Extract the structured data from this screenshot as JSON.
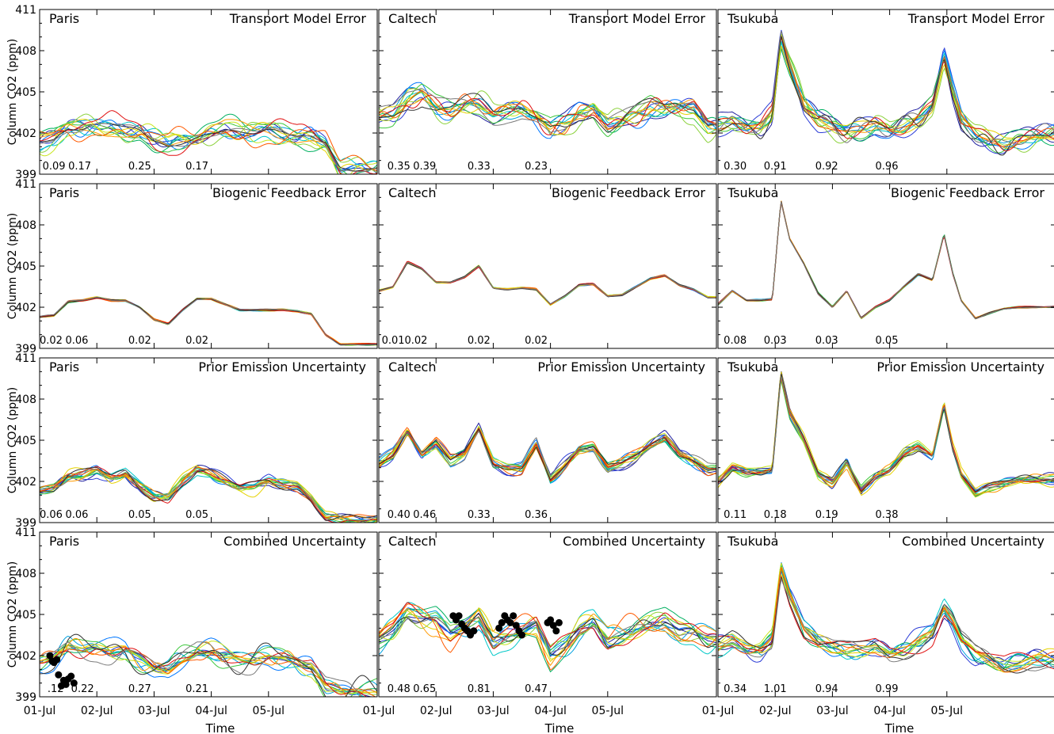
{
  "figure": {
    "ylabel": "Column CO2 (ppm)",
    "xlabel": "Time",
    "yticks": [
      399,
      402,
      405,
      408,
      411
    ],
    "xticks": [
      "01-Jul",
      "02-Jul",
      "03-Jul",
      "04-Jul",
      "05-Jul"
    ],
    "ylim": [
      399,
      411
    ],
    "xlim": [
      0,
      5.9
    ],
    "sites": [
      "Paris",
      "Caltech",
      "Tsukuba"
    ],
    "rows": [
      {
        "title": "Transport Model Error",
        "spread": "large"
      },
      {
        "title": "Biogenic Feedback Error",
        "spread": "tiny"
      },
      {
        "title": "Prior Emission Uncertainty",
        "spread": "medium"
      },
      {
        "title": "Combined Uncertainty",
        "spread": "large"
      }
    ],
    "ensemble_colors": [
      "#1f1fa0",
      "#2a3bd6",
      "#0077ff",
      "#00a0e0",
      "#00c8c8",
      "#00b060",
      "#3cc83c",
      "#8cd23c",
      "#c8e61e",
      "#e6d200",
      "#ff9900",
      "#ff5a00",
      "#e01010",
      "#303030",
      "#7a7a7a"
    ]
  },
  "chart_data": [
    {
      "type": "line",
      "panel": "Paris",
      "title": "Transport Model Error",
      "x": [
        0,
        0.25,
        0.5,
        0.75,
        1.0,
        1.25,
        1.5,
        1.75,
        2.0,
        2.25,
        2.5,
        2.75,
        3.0,
        3.25,
        3.5,
        3.75,
        4.0,
        4.25,
        4.5,
        4.75,
        5.0,
        5.25,
        5.5,
        5.75,
        5.9
      ],
      "mean": [
        401.4,
        401.6,
        402.4,
        402.4,
        402.6,
        402.6,
        402.3,
        402.2,
        401.5,
        401.0,
        401.3,
        401.6,
        402.0,
        402.3,
        402.1,
        402.0,
        402.1,
        402.0,
        401.7,
        401.8,
        401.5,
        399.5,
        399.3,
        399.3,
        399.3
      ],
      "numbers": [
        {
          "x": 0.25,
          "text": "0.09"
        },
        {
          "x": 0.7,
          "text": "0.17"
        },
        {
          "x": 1.75,
          "text": "0.25"
        },
        {
          "x": 2.75,
          "text": "0.17"
        }
      ],
      "observations": []
    },
    {
      "type": "line",
      "panel": "Caltech",
      "title": "Transport Model Error",
      "x": [
        0,
        0.25,
        0.5,
        0.75,
        1.0,
        1.25,
        1.5,
        1.75,
        2.0,
        2.25,
        2.5,
        2.75,
        3.0,
        3.25,
        3.5,
        3.75,
        4.0,
        4.25,
        4.5,
        4.75,
        5.0,
        5.25,
        5.5,
        5.75,
        5.9
      ],
      "mean": [
        403.2,
        403.5,
        404.6,
        404.9,
        404.0,
        403.8,
        404.0,
        403.9,
        403.2,
        403.5,
        403.6,
        403.2,
        402.4,
        402.8,
        403.8,
        403.9,
        402.6,
        402.8,
        403.2,
        403.8,
        403.5,
        403.8,
        403.8,
        402.5,
        402.5
      ],
      "numbers": [
        {
          "x": 0.35,
          "text": "0.35"
        },
        {
          "x": 0.8,
          "text": "0.39"
        },
        {
          "x": 1.75,
          "text": "0.33"
        },
        {
          "x": 2.75,
          "text": "0.23"
        }
      ],
      "observations": []
    },
    {
      "type": "line",
      "panel": "Tsukuba",
      "title": "Transport Model Error",
      "x": [
        0,
        0.25,
        0.5,
        0.75,
        0.95,
        1.1,
        1.25,
        1.5,
        1.75,
        2.0,
        2.25,
        2.5,
        2.75,
        3.0,
        3.25,
        3.5,
        3.75,
        3.95,
        4.1,
        4.25,
        4.5,
        4.75,
        5.0,
        5.25,
        5.5,
        5.75,
        5.9
      ],
      "mean": [
        402.5,
        403.0,
        402.5,
        402.6,
        403.5,
        409.0,
        407.0,
        404.0,
        402.8,
        402.5,
        402.0,
        402.3,
        402.6,
        402.3,
        402.5,
        403.0,
        404.0,
        407.5,
        405.0,
        403.0,
        402.0,
        401.5,
        401.2,
        401.5,
        401.7,
        402.0,
        402.0
      ],
      "numbers": [
        {
          "x": 0.3,
          "text": "0.30"
        },
        {
          "x": 1.0,
          "text": "0.91"
        },
        {
          "x": 1.9,
          "text": "0.92"
        },
        {
          "x": 2.95,
          "text": "0.96"
        }
      ],
      "observations": []
    },
    {
      "type": "line",
      "panel": "Paris",
      "title": "Biogenic Feedback Error",
      "x": [
        0,
        0.25,
        0.5,
        0.75,
        1.0,
        1.25,
        1.5,
        1.75,
        2.0,
        2.25,
        2.5,
        2.75,
        3.0,
        3.25,
        3.5,
        3.75,
        4.0,
        4.25,
        4.5,
        4.75,
        5.0,
        5.25,
        5.5,
        5.75,
        5.9
      ],
      "mean": [
        401.3,
        401.4,
        402.4,
        402.5,
        402.7,
        402.5,
        402.5,
        402.0,
        401.1,
        400.8,
        401.8,
        402.6,
        402.6,
        402.2,
        401.8,
        401.8,
        401.8,
        401.8,
        401.7,
        401.5,
        400.0,
        399.3,
        399.3,
        399.3,
        399.3
      ],
      "numbers": [
        {
          "x": 0.2,
          "text": "0.02"
        },
        {
          "x": 0.65,
          "text": "0.06"
        },
        {
          "x": 1.75,
          "text": "0.02"
        },
        {
          "x": 2.75,
          "text": "0.02"
        }
      ],
      "observations": []
    },
    {
      "type": "line",
      "panel": "Caltech",
      "title": "Biogenic Feedback Error",
      "x": [
        0,
        0.25,
        0.5,
        0.75,
        1.0,
        1.25,
        1.5,
        1.75,
        2.0,
        2.25,
        2.5,
        2.75,
        3.0,
        3.25,
        3.5,
        3.75,
        4.0,
        4.25,
        4.5,
        4.75,
        5.0,
        5.25,
        5.5,
        5.75,
        5.9
      ],
      "mean": [
        403.2,
        403.5,
        405.3,
        404.8,
        403.8,
        403.8,
        404.2,
        405.0,
        403.4,
        403.3,
        403.4,
        403.3,
        402.2,
        402.8,
        403.6,
        403.7,
        402.8,
        402.9,
        403.5,
        404.1,
        404.3,
        403.6,
        403.3,
        402.7,
        402.7
      ],
      "numbers": [
        {
          "x": 0.25,
          "text": "0.01"
        },
        {
          "x": 0.65,
          "text": "0.02"
        },
        {
          "x": 1.75,
          "text": "0.02"
        },
        {
          "x": 2.75,
          "text": "0.02"
        }
      ],
      "observations": []
    },
    {
      "type": "line",
      "panel": "Tsukuba",
      "title": "Biogenic Feedback Error",
      "x": [
        0,
        0.25,
        0.5,
        0.75,
        0.95,
        1.1,
        1.25,
        1.5,
        1.75,
        2.0,
        2.25,
        2.5,
        2.75,
        3.0,
        3.25,
        3.5,
        3.75,
        3.95,
        4.1,
        4.25,
        4.5,
        4.75,
        5.0,
        5.25,
        5.5,
        5.75,
        5.9
      ],
      "mean": [
        402.2,
        403.2,
        402.5,
        402.5,
        402.6,
        409.8,
        407.0,
        405.2,
        403.0,
        402.0,
        403.2,
        401.2,
        402.0,
        402.5,
        403.5,
        404.4,
        404.0,
        407.3,
        404.5,
        402.5,
        401.2,
        401.6,
        401.9,
        402.0,
        402.0,
        402.0,
        402.0
      ],
      "numbers": [
        {
          "x": 0.3,
          "text": "0.08"
        },
        {
          "x": 1.0,
          "text": "0.03"
        },
        {
          "x": 1.9,
          "text": "0.03"
        },
        {
          "x": 2.95,
          "text": "0.05"
        }
      ],
      "observations": []
    },
    {
      "type": "line",
      "panel": "Paris",
      "title": "Prior Emission Uncertainty",
      "x": [
        0,
        0.25,
        0.5,
        0.75,
        1.0,
        1.25,
        1.5,
        1.75,
        2.0,
        2.25,
        2.5,
        2.75,
        3.0,
        3.25,
        3.5,
        3.75,
        4.0,
        4.25,
        4.5,
        4.75,
        5.0,
        5.25,
        5.5,
        5.75,
        5.9
      ],
      "mean": [
        401.3,
        401.5,
        402.3,
        402.4,
        402.8,
        402.3,
        402.6,
        401.7,
        401.0,
        400.8,
        402.0,
        402.8,
        402.5,
        402.0,
        401.5,
        401.6,
        402.1,
        401.8,
        401.6,
        400.8,
        399.5,
        399.3,
        399.2,
        399.2,
        399.2
      ],
      "numbers": [
        {
          "x": 0.2,
          "text": "0.06"
        },
        {
          "x": 0.65,
          "text": "0.06"
        },
        {
          "x": 1.75,
          "text": "0.05"
        },
        {
          "x": 2.75,
          "text": "0.05"
        }
      ],
      "observations": []
    },
    {
      "type": "line",
      "panel": "Caltech",
      "title": "Prior Emission Uncertainty",
      "x": [
        0,
        0.25,
        0.5,
        0.75,
        1.0,
        1.25,
        1.5,
        1.75,
        2.0,
        2.25,
        2.5,
        2.75,
        3.0,
        3.25,
        3.5,
        3.75,
        4.0,
        4.25,
        4.5,
        4.75,
        5.0,
        5.25,
        5.5,
        5.75,
        5.9
      ],
      "mean": [
        403.3,
        404.0,
        405.7,
        404.0,
        404.8,
        403.5,
        404.0,
        405.8,
        403.2,
        403.0,
        403.0,
        404.8,
        402.2,
        403.2,
        404.3,
        404.5,
        403.0,
        403.3,
        403.8,
        404.6,
        405.2,
        404.0,
        403.6,
        403.0,
        403.0
      ],
      "numbers": [
        {
          "x": 0.35,
          "text": "0.40"
        },
        {
          "x": 0.8,
          "text": "0.46"
        },
        {
          "x": 1.75,
          "text": "0.33"
        },
        {
          "x": 2.75,
          "text": "0.36"
        }
      ],
      "observations": []
    },
    {
      "type": "line",
      "panel": "Tsukuba",
      "title": "Prior Emission Uncertainty",
      "x": [
        0,
        0.25,
        0.5,
        0.75,
        0.95,
        1.1,
        1.25,
        1.5,
        1.75,
        2.0,
        2.25,
        2.5,
        2.75,
        3.0,
        3.25,
        3.5,
        3.75,
        3.95,
        4.1,
        4.25,
        4.5,
        4.75,
        5.0,
        5.25,
        5.5,
        5.75,
        5.9
      ],
      "mean": [
        402.0,
        403.0,
        402.6,
        402.6,
        402.8,
        409.8,
        407.0,
        405.0,
        402.6,
        402.0,
        403.5,
        401.3,
        402.3,
        402.8,
        404.0,
        404.5,
        403.8,
        407.6,
        404.5,
        402.5,
        401.2,
        401.7,
        402.0,
        402.1,
        402.1,
        402.1,
        402.1
      ],
      "numbers": [
        {
          "x": 0.3,
          "text": "0.11"
        },
        {
          "x": 1.0,
          "text": "0.18"
        },
        {
          "x": 1.9,
          "text": "0.19"
        },
        {
          "x": 2.95,
          "text": "0.38"
        }
      ],
      "observations": []
    },
    {
      "type": "line",
      "panel": "Paris",
      "title": "Combined Uncertainty",
      "x": [
        0,
        0.25,
        0.5,
        0.75,
        1.0,
        1.25,
        1.5,
        1.75,
        2.0,
        2.25,
        2.5,
        2.75,
        3.0,
        3.25,
        3.5,
        3.75,
        4.0,
        4.25,
        4.5,
        4.75,
        5.0,
        5.25,
        5.5,
        5.75,
        5.9
      ],
      "mean": [
        401.5,
        401.8,
        402.6,
        402.4,
        402.6,
        402.4,
        402.5,
        401.8,
        401.0,
        400.8,
        401.6,
        402.3,
        402.3,
        402.1,
        401.8,
        401.6,
        402.0,
        401.8,
        401.6,
        401.2,
        399.6,
        399.3,
        399.3,
        399.3,
        399.3
      ],
      "numbers": [
        {
          "x": 0.28,
          "text": ".12"
        },
        {
          "x": 0.75,
          "text": "0.22"
        },
        {
          "x": 1.75,
          "text": "0.27"
        },
        {
          "x": 2.75,
          "text": "0.21"
        }
      ],
      "observations": [
        {
          "x": 0.18,
          "y": 402.0
        },
        {
          "x": 0.22,
          "y": 401.6
        },
        {
          "x": 0.25,
          "y": 401.5
        },
        {
          "x": 0.3,
          "y": 401.7
        },
        {
          "x": 0.33,
          "y": 400.6
        },
        {
          "x": 0.38,
          "y": 399.8
        },
        {
          "x": 0.42,
          "y": 400.2
        },
        {
          "x": 0.46,
          "y": 399.9
        },
        {
          "x": 0.5,
          "y": 400.3
        },
        {
          "x": 0.55,
          "y": 400.5
        },
        {
          "x": 0.6,
          "y": 400.0
        }
      ]
    },
    {
      "type": "line",
      "panel": "Caltech",
      "title": "Combined Uncertainty",
      "x": [
        0,
        0.25,
        0.5,
        0.75,
        1.0,
        1.25,
        1.5,
        1.75,
        2.0,
        2.25,
        2.5,
        2.75,
        3.0,
        3.25,
        3.5,
        3.75,
        4.0,
        4.25,
        4.5,
        4.75,
        5.0,
        5.25,
        5.5,
        5.75,
        5.9
      ],
      "mean": [
        403.2,
        403.8,
        405.0,
        404.6,
        404.6,
        403.5,
        404.2,
        405.0,
        403.0,
        403.4,
        403.8,
        404.2,
        402.0,
        402.8,
        404.0,
        404.4,
        403.0,
        403.4,
        404.0,
        404.4,
        404.6,
        403.8,
        403.6,
        403.0,
        403.0
      ],
      "numbers": [
        {
          "x": 0.35,
          "text": "0.48"
        },
        {
          "x": 0.8,
          "text": "0.65"
        },
        {
          "x": 1.75,
          "text": "0.81"
        },
        {
          "x": 2.75,
          "text": "0.47"
        }
      ],
      "observations": [
        {
          "x": 1.3,
          "y": 404.9
        },
        {
          "x": 1.35,
          "y": 404.6
        },
        {
          "x": 1.4,
          "y": 404.9
        },
        {
          "x": 1.45,
          "y": 404.3
        },
        {
          "x": 1.5,
          "y": 404.0
        },
        {
          "x": 1.55,
          "y": 403.8
        },
        {
          "x": 1.6,
          "y": 403.5
        },
        {
          "x": 1.66,
          "y": 403.8
        },
        {
          "x": 2.1,
          "y": 404.0
        },
        {
          "x": 2.15,
          "y": 404.4
        },
        {
          "x": 2.2,
          "y": 404.9
        },
        {
          "x": 2.25,
          "y": 404.6
        },
        {
          "x": 2.3,
          "y": 404.4
        },
        {
          "x": 2.35,
          "y": 404.9
        },
        {
          "x": 2.4,
          "y": 404.2
        },
        {
          "x": 2.45,
          "y": 403.8
        },
        {
          "x": 2.5,
          "y": 403.5
        },
        {
          "x": 2.95,
          "y": 404.4
        },
        {
          "x": 3.0,
          "y": 404.6
        },
        {
          "x": 3.05,
          "y": 404.2
        },
        {
          "x": 3.1,
          "y": 403.8
        },
        {
          "x": 3.15,
          "y": 404.4
        }
      ]
    },
    {
      "type": "line",
      "panel": "Tsukuba",
      "title": "Combined Uncertainty",
      "x": [
        0,
        0.25,
        0.5,
        0.75,
        0.95,
        1.1,
        1.25,
        1.5,
        1.75,
        2.0,
        2.25,
        2.5,
        2.75,
        3.0,
        3.25,
        3.5,
        3.75,
        3.95,
        4.1,
        4.25,
        4.5,
        4.75,
        5.0,
        5.25,
        5.5,
        5.75,
        5.9
      ],
      "mean": [
        402.5,
        403.0,
        402.6,
        402.6,
        403.4,
        408.5,
        406.5,
        404.0,
        402.8,
        402.4,
        402.2,
        402.5,
        402.8,
        402.3,
        402.5,
        403.0,
        403.6,
        405.5,
        404.5,
        403.0,
        402.0,
        401.6,
        401.2,
        401.5,
        401.8,
        401.8,
        401.8
      ],
      "numbers": [
        {
          "x": 0.3,
          "text": "0.34"
        },
        {
          "x": 1.0,
          "text": "1.01"
        },
        {
          "x": 1.9,
          "text": "0.94"
        },
        {
          "x": 2.95,
          "text": "0.99"
        }
      ],
      "observations": []
    }
  ]
}
